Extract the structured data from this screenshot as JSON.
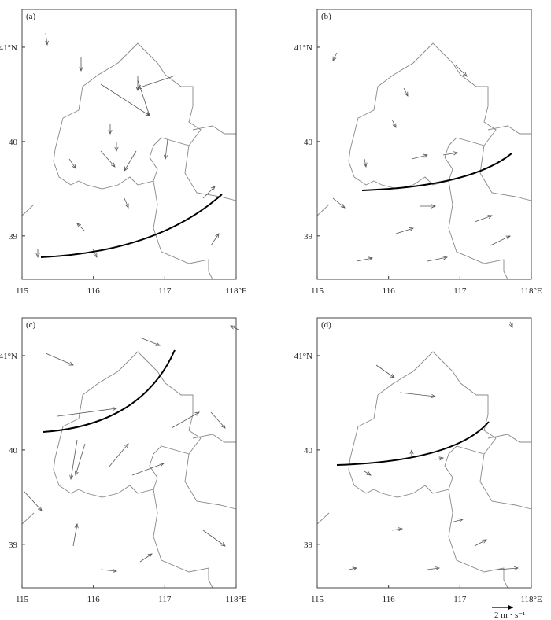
{
  "panels": [
    {
      "label": "(a)"
    },
    {
      "label": "(b)"
    },
    {
      "label": "(c)"
    },
    {
      "label": "(d)"
    }
  ],
  "axes": {
    "xlim": [
      115,
      118
    ],
    "ylim": [
      38.54,
      41.4
    ],
    "xticks": [
      {
        "value": 115,
        "label": "115"
      },
      {
        "value": 116,
        "label": "116"
      },
      {
        "value": 117,
        "label": "117"
      },
      {
        "value": 118,
        "label": "118°E"
      }
    ],
    "yticks": [
      {
        "value": 39,
        "label": "39"
      },
      {
        "value": 40,
        "label": "40"
      },
      {
        "value": 41,
        "label": "41°N"
      }
    ]
  },
  "scale": {
    "label": "2 m · s⁻¹"
  }
}
